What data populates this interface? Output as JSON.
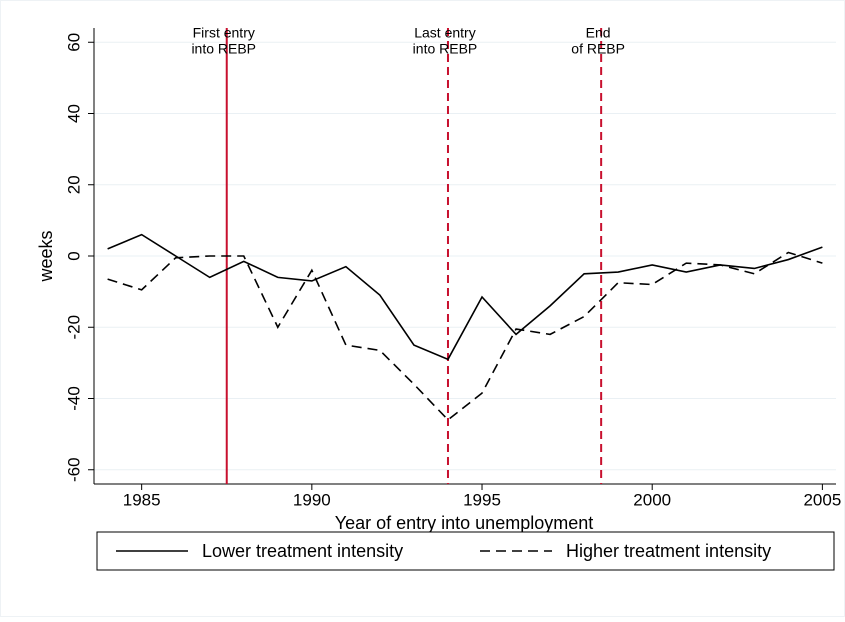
{
  "chart_data": {
    "type": "line",
    "x_label": "Year of entry into unemployment",
    "y_label": "weeks",
    "x": [
      1984,
      1985,
      1986,
      1987,
      1988,
      1989,
      1990,
      1991,
      1992,
      1993,
      1994,
      1995,
      1996,
      1997,
      1998,
      1999,
      2000,
      2001,
      2002,
      2003,
      2004,
      2005
    ],
    "series": [
      {
        "name": "Lower treatment intensity",
        "color": "#000000",
        "dash": "solid",
        "values": [
          2,
          6,
          0,
          -6,
          -1.5,
          -6,
          -7,
          -3,
          -11,
          -25,
          -29,
          -11.5,
          -22,
          -14,
          -5,
          -4.5,
          -2.5,
          -4.5,
          -2.5,
          -3.5,
          -1,
          2.5
        ]
      },
      {
        "name": "Higher treatment intensity",
        "color": "#000000",
        "dash": "dashed",
        "values": [
          -6.5,
          -9.5,
          -0.5,
          0,
          0,
          -20,
          -4,
          -25,
          -26.5,
          -36,
          -46,
          -38.5,
          -20.5,
          -22,
          -17,
          -7.5,
          -8,
          -2,
          -2.5,
          -5,
          1,
          -2
        ]
      }
    ],
    "reference_lines": [
      {
        "x": 1987.5,
        "style": "solid",
        "color": "#c8102e",
        "label": [
          "First entry",
          "into REBP"
        ]
      },
      {
        "x": 1994,
        "style": "dashed",
        "color": "#c8102e",
        "label": [
          "Last entry",
          "into REBP"
        ]
      },
      {
        "x": 1998.5,
        "style": "dashed",
        "color": "#c8102e",
        "label": [
          "End",
          "of REBP"
        ]
      }
    ],
    "xlim": [
      1983.6,
      2005.4
    ],
    "xticks": [
      1985,
      1990,
      1995,
      2000,
      2005
    ],
    "ylim": [
      -64,
      64
    ],
    "yticks": [
      -60,
      -40,
      -20,
      0,
      20,
      40,
      60
    ],
    "grid": true,
    "legend": "bottom"
  }
}
